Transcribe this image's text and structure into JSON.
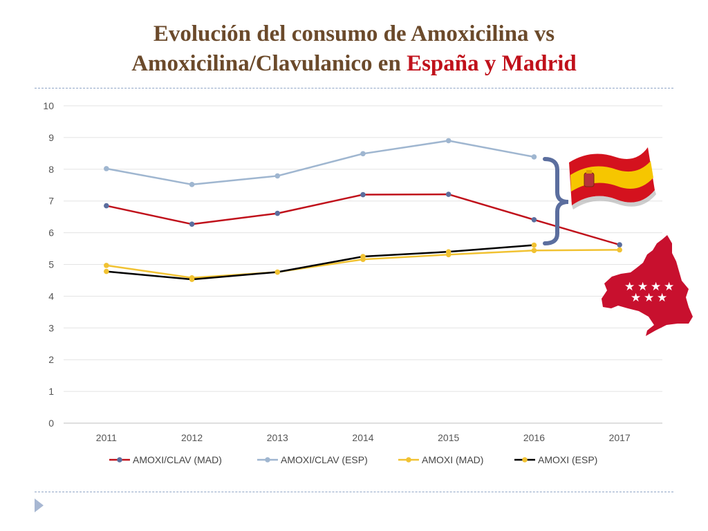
{
  "title": {
    "line1": "Evolución del consumo de Amoxicilina vs",
    "line2_prefix": "Amoxicilina/Clavulanico en ",
    "line2_highlight": "España y Madrid"
  },
  "colors": {
    "title": "#6b4a2b",
    "highlight": "#c0111b",
    "amoxi_clav_mad": "#c0111b",
    "amoxi_clav_esp": "#9fb6d0",
    "amoxi_mad": "#f1c232",
    "amoxi_esp": "#000000",
    "bracket": "#5b6e9e"
  },
  "chart_data": {
    "type": "line",
    "categories": [
      "2011",
      "2012",
      "2013",
      "2014",
      "2015",
      "2016",
      "2017"
    ],
    "ylim": [
      0,
      10
    ],
    "yticks": [
      0,
      1,
      2,
      3,
      4,
      5,
      6,
      7,
      8,
      9,
      10
    ],
    "grid": true,
    "legend_position": "bottom",
    "series": [
      {
        "name": "AMOXI/CLAV (MAD)",
        "key": "amoxi_clav_mad",
        "values": [
          6.85,
          6.27,
          6.61,
          7.2,
          7.21,
          6.41,
          5.62
        ]
      },
      {
        "name": "AMOXI/CLAV (ESP)",
        "key": "amoxi_clav_esp",
        "values": [
          8.02,
          7.52,
          7.79,
          8.49,
          8.9,
          8.39,
          null
        ]
      },
      {
        "name": "AMOXI (MAD)",
        "key": "amoxi_mad",
        "values": [
          4.97,
          4.58,
          4.76,
          5.16,
          5.31,
          5.44,
          5.46
        ]
      },
      {
        "name": "AMOXI (ESP)",
        "key": "amoxi_esp",
        "values": [
          4.78,
          4.53,
          4.76,
          5.25,
          5.4,
          5.61,
          null
        ]
      }
    ]
  },
  "decorations": {
    "bracket_icon": "right-curly-bracket",
    "spain_flag_icon": "spain-flag",
    "madrid_map_icon": "madrid-region-map-with-stars",
    "nav_icon": "play-triangle"
  }
}
